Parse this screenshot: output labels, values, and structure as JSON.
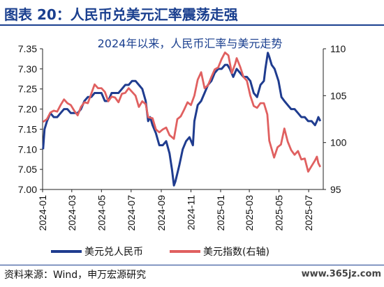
{
  "header": {
    "title": "图表 20：人民币兑美元汇率震荡走强",
    "accent_color": "#1a3f8f"
  },
  "footer": {
    "source": "资料来源：Wind，申万宏源研究",
    "watermark": "www.365jz.com"
  },
  "chart_data": {
    "type": "line",
    "title": "2024年以来，人民币汇率与美元走势",
    "x_ticks": [
      "2024-01",
      "2024-03",
      "2024-05",
      "2024-07",
      "2024-09",
      "2024-11",
      "2025-01",
      "2025-03",
      "2025-05",
      "2025-07"
    ],
    "left_axis": {
      "min": 7.0,
      "max": 7.35,
      "ticks": [
        "7.00",
        "7.05",
        "7.10",
        "7.15",
        "7.20",
        "7.25",
        "7.30",
        "7.35"
      ]
    },
    "right_axis": {
      "min": 95,
      "max": 110,
      "ticks": [
        "95",
        "100",
        "105",
        "110"
      ]
    },
    "grid": false,
    "legend_position": "bottom-left",
    "series": [
      {
        "name": "美元兑人民币",
        "axis": "left",
        "color": "#1f3c8f",
        "points": [
          [
            "2024-01-02",
            7.1
          ],
          [
            "2024-01-05",
            7.15
          ],
          [
            "2024-01-10",
            7.17
          ],
          [
            "2024-01-17",
            7.19
          ],
          [
            "2024-01-24",
            7.18
          ],
          [
            "2024-01-31",
            7.18
          ],
          [
            "2024-02-07",
            7.19
          ],
          [
            "2024-02-14",
            7.2
          ],
          [
            "2024-02-21",
            7.2
          ],
          [
            "2024-02-28",
            7.19
          ],
          [
            "2024-03-06",
            7.19
          ],
          [
            "2024-03-13",
            7.19
          ],
          [
            "2024-03-20",
            7.2
          ],
          [
            "2024-03-27",
            7.22
          ],
          [
            "2024-04-03",
            7.23
          ],
          [
            "2024-04-10",
            7.23
          ],
          [
            "2024-04-17",
            7.24
          ],
          [
            "2024-04-24",
            7.24
          ],
          [
            "2024-05-01",
            7.24
          ],
          [
            "2024-05-08",
            7.22
          ],
          [
            "2024-05-15",
            7.22
          ],
          [
            "2024-05-22",
            7.24
          ],
          [
            "2024-05-29",
            7.24
          ],
          [
            "2024-06-05",
            7.24
          ],
          [
            "2024-06-12",
            7.25
          ],
          [
            "2024-06-19",
            7.26
          ],
          [
            "2024-06-26",
            7.26
          ],
          [
            "2024-07-03",
            7.27
          ],
          [
            "2024-07-10",
            7.27
          ],
          [
            "2024-07-17",
            7.26
          ],
          [
            "2024-07-24",
            7.25
          ],
          [
            "2024-07-31",
            7.22
          ],
          [
            "2024-08-05",
            7.17
          ],
          [
            "2024-08-09",
            7.18
          ],
          [
            "2024-08-14",
            7.16
          ],
          [
            "2024-08-21",
            7.14
          ],
          [
            "2024-08-28",
            7.11
          ],
          [
            "2024-09-04",
            7.11
          ],
          [
            "2024-09-11",
            7.12
          ],
          [
            "2024-09-18",
            7.09
          ],
          [
            "2024-09-23",
            7.05
          ],
          [
            "2024-09-27",
            7.01
          ],
          [
            "2024-09-30",
            7.02
          ],
          [
            "2024-10-08",
            7.06
          ],
          [
            "2024-10-15",
            7.1
          ],
          [
            "2024-10-22",
            7.12
          ],
          [
            "2024-10-29",
            7.13
          ],
          [
            "2024-11-05",
            7.11
          ],
          [
            "2024-11-08",
            7.17
          ],
          [
            "2024-11-15",
            7.21
          ],
          [
            "2024-11-22",
            7.22
          ],
          [
            "2024-11-29",
            7.24
          ],
          [
            "2024-12-06",
            7.26
          ],
          [
            "2024-12-13",
            7.27
          ],
          [
            "2024-12-20",
            7.29
          ],
          [
            "2024-12-27",
            7.3
          ],
          [
            "2025-01-03",
            7.3
          ],
          [
            "2025-01-10",
            7.31
          ],
          [
            "2025-01-15",
            7.31
          ],
          [
            "2025-01-20",
            7.3
          ],
          [
            "2025-01-27",
            7.28
          ],
          [
            "2025-02-03",
            7.3
          ],
          [
            "2025-02-10",
            7.29
          ],
          [
            "2025-02-17",
            7.28
          ],
          [
            "2025-02-24",
            7.28
          ],
          [
            "2025-03-03",
            7.27
          ],
          [
            "2025-03-10",
            7.24
          ],
          [
            "2025-03-17",
            7.23
          ],
          [
            "2025-03-24",
            7.26
          ],
          [
            "2025-03-31",
            7.27
          ],
          [
            "2025-04-03",
            7.3
          ],
          [
            "2025-04-08",
            7.34
          ],
          [
            "2025-04-11",
            7.33
          ],
          [
            "2025-04-16",
            7.31
          ],
          [
            "2025-04-22",
            7.3
          ],
          [
            "2025-04-30",
            7.27
          ],
          [
            "2025-05-06",
            7.23
          ],
          [
            "2025-05-12",
            7.22
          ],
          [
            "2025-05-19",
            7.21
          ],
          [
            "2025-05-26",
            7.2
          ],
          [
            "2025-06-02",
            7.2
          ],
          [
            "2025-06-09",
            7.19
          ],
          [
            "2025-06-16",
            7.18
          ],
          [
            "2025-06-23",
            7.18
          ],
          [
            "2025-06-30",
            7.17
          ],
          [
            "2025-07-07",
            7.17
          ],
          [
            "2025-07-14",
            7.16
          ],
          [
            "2025-07-18",
            7.17
          ],
          [
            "2025-07-21",
            7.18
          ],
          [
            "2025-07-25",
            7.17
          ]
        ]
      },
      {
        "name": "美元指数(右轴)",
        "axis": "right",
        "color": "#e06060",
        "points": [
          [
            "2024-01-02",
            102.2
          ],
          [
            "2024-01-10",
            102.5
          ],
          [
            "2024-01-17",
            103.2
          ],
          [
            "2024-01-24",
            103.4
          ],
          [
            "2024-01-31",
            103.3
          ],
          [
            "2024-02-07",
            104.0
          ],
          [
            "2024-02-14",
            104.6
          ],
          [
            "2024-02-21",
            104.2
          ],
          [
            "2024-02-28",
            104.0
          ],
          [
            "2024-03-06",
            103.4
          ],
          [
            "2024-03-13",
            102.9
          ],
          [
            "2024-03-20",
            103.8
          ],
          [
            "2024-03-27",
            104.3
          ],
          [
            "2024-04-03",
            104.2
          ],
          [
            "2024-04-10",
            105.2
          ],
          [
            "2024-04-17",
            106.2
          ],
          [
            "2024-04-24",
            105.8
          ],
          [
            "2024-05-01",
            105.8
          ],
          [
            "2024-05-08",
            105.4
          ],
          [
            "2024-05-15",
            104.4
          ],
          [
            "2024-05-22",
            104.9
          ],
          [
            "2024-05-29",
            104.8
          ],
          [
            "2024-06-05",
            104.3
          ],
          [
            "2024-06-12",
            105.2
          ],
          [
            "2024-06-19",
            105.3
          ],
          [
            "2024-06-26",
            105.8
          ],
          [
            "2024-07-03",
            105.4
          ],
          [
            "2024-07-10",
            105.0
          ],
          [
            "2024-07-17",
            103.8
          ],
          [
            "2024-07-24",
            104.4
          ],
          [
            "2024-07-31",
            104.1
          ],
          [
            "2024-08-05",
            102.7
          ],
          [
            "2024-08-14",
            102.6
          ],
          [
            "2024-08-21",
            101.4
          ],
          [
            "2024-08-28",
            101.1
          ],
          [
            "2024-09-04",
            101.4
          ],
          [
            "2024-09-11",
            101.6
          ],
          [
            "2024-09-18",
            100.8
          ],
          [
            "2024-09-27",
            100.4
          ],
          [
            "2024-10-04",
            102.5
          ],
          [
            "2024-10-11",
            102.8
          ],
          [
            "2024-10-18",
            103.5
          ],
          [
            "2024-10-25",
            104.3
          ],
          [
            "2024-11-01",
            104.0
          ],
          [
            "2024-11-08",
            105.0
          ],
          [
            "2024-11-15",
            106.7
          ],
          [
            "2024-11-22",
            107.5
          ],
          [
            "2024-11-29",
            105.8
          ],
          [
            "2024-12-06",
            106.1
          ],
          [
            "2024-12-13",
            107.0
          ],
          [
            "2024-12-20",
            107.8
          ],
          [
            "2024-12-27",
            108.0
          ],
          [
            "2025-01-03",
            108.9
          ],
          [
            "2025-01-10",
            109.6
          ],
          [
            "2025-01-17",
            109.3
          ],
          [
            "2025-01-24",
            107.4
          ],
          [
            "2025-01-31",
            108.4
          ],
          [
            "2025-02-03",
            109.0
          ],
          [
            "2025-02-10",
            108.1
          ],
          [
            "2025-02-17",
            107.0
          ],
          [
            "2025-02-24",
            106.6
          ],
          [
            "2025-03-03",
            105.0
          ],
          [
            "2025-03-10",
            103.9
          ],
          [
            "2025-03-17",
            103.7
          ],
          [
            "2025-03-24",
            104.2
          ],
          [
            "2025-03-31",
            104.2
          ],
          [
            "2025-04-07",
            103.0
          ],
          [
            "2025-04-11",
            100.2
          ],
          [
            "2025-04-21",
            98.4
          ],
          [
            "2025-04-28",
            99.5
          ],
          [
            "2025-05-05",
            99.8
          ],
          [
            "2025-05-12",
            101.5
          ],
          [
            "2025-05-19",
            100.1
          ],
          [
            "2025-05-26",
            99.2
          ],
          [
            "2025-06-02",
            98.7
          ],
          [
            "2025-06-09",
            99.1
          ],
          [
            "2025-06-16",
            98.2
          ],
          [
            "2025-06-23",
            98.3
          ],
          [
            "2025-06-30",
            96.9
          ],
          [
            "2025-07-07",
            97.5
          ],
          [
            "2025-07-14",
            98.1
          ],
          [
            "2025-07-18",
            98.5
          ],
          [
            "2025-07-21",
            97.8
          ],
          [
            "2025-07-25",
            97.4
          ]
        ]
      }
    ]
  }
}
